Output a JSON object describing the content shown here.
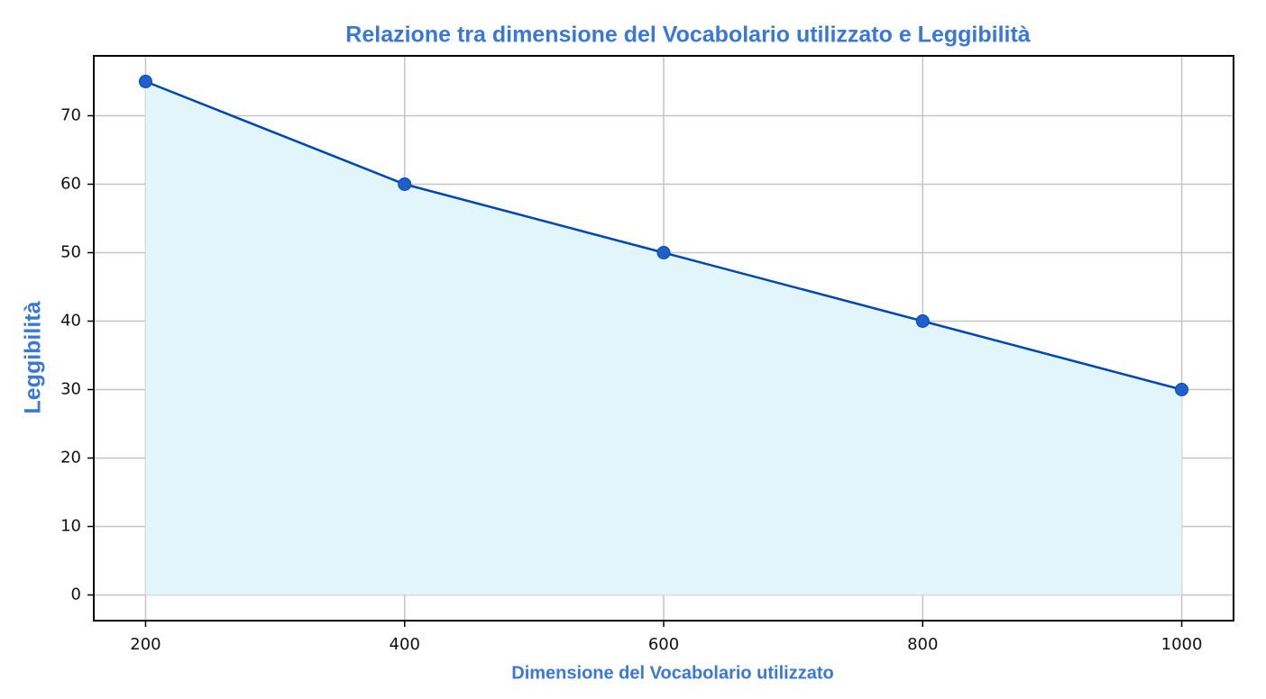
{
  "chart_data": {
    "type": "line",
    "title": "Relazione tra dimensione del Vocabolario utilizzato e Leggibilità",
    "x_label": "Dimensione del Vocabolario utilizzato",
    "y_label": "Leggibilità",
    "x": [
      200,
      400,
      600,
      800,
      1000
    ],
    "series": [
      {
        "name": "Leggibilità",
        "color": "#0047b3",
        "marker_color": "#1f5fcc",
        "fill_color": "#e1f5fb",
        "values": [
          75,
          60,
          50,
          40,
          30
        ]
      }
    ],
    "xlim": [
      160,
      1040
    ],
    "xticks": [
      200,
      400,
      600,
      800,
      1000
    ],
    "ylim": [
      -3.75,
      78.75
    ],
    "yticks": [
      0,
      10,
      20,
      30,
      40,
      50,
      60,
      70
    ],
    "grid": true,
    "fill_area": true
  }
}
